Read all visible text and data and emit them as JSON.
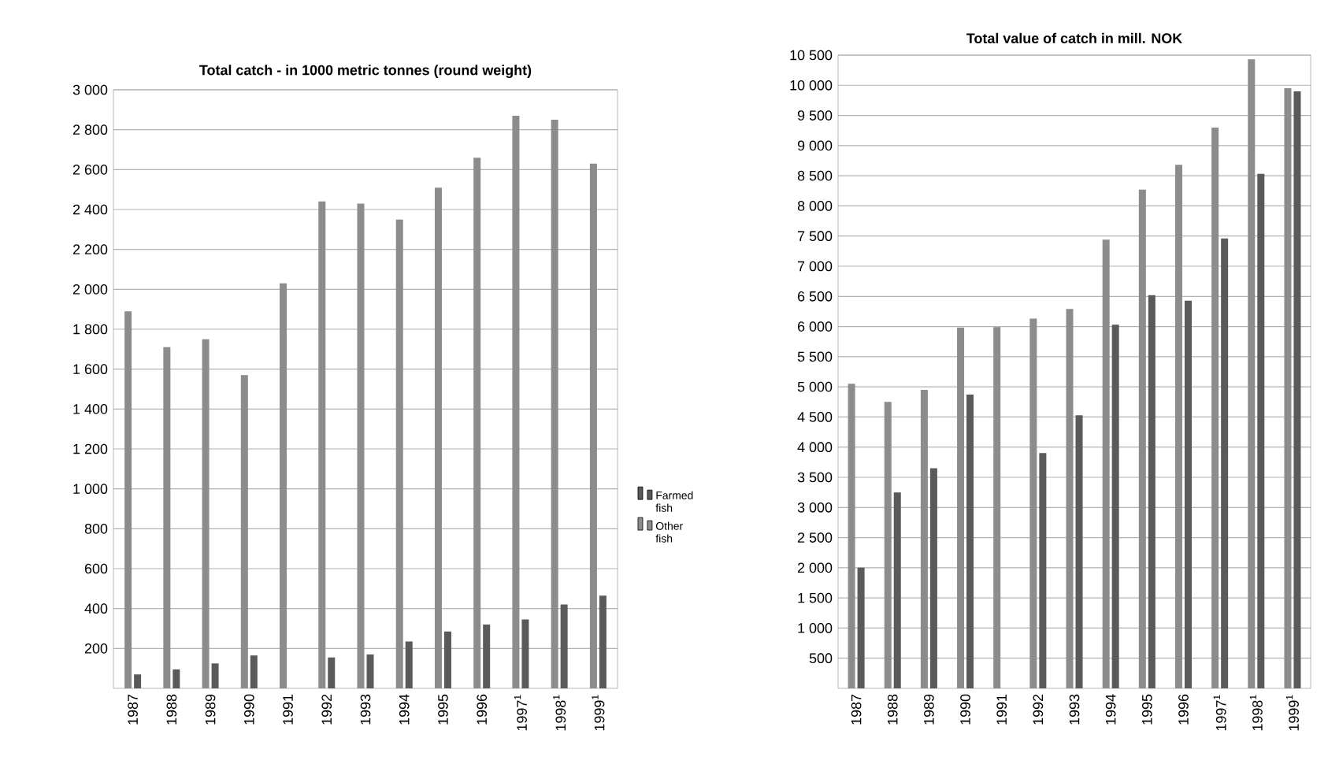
{
  "chart_data": [
    {
      "type": "bar",
      "title": "Total catch - in 1000 metric tonnes (round weight)",
      "categories": [
        "1987",
        "1988",
        "1989",
        "1990",
        "1991",
        "1992",
        "1993",
        "1994",
        "1995",
        "1996",
        "1997$^{1}$",
        "1998$^{1}$",
        "1999$^{1}$"
      ],
      "series": [
        {
          "name": "Other fish",
          "color": "#8c8c8c",
          "values": [
            1890,
            1710,
            1750,
            1570,
            2030,
            2440,
            2430,
            2350,
            2510,
            2660,
            2870,
            2850,
            2630
          ]
        },
        {
          "name": "Farmed fish",
          "color": "#5a5a5a",
          "values": [
            70,
            95,
            125,
            165,
            null,
            155,
            170,
            235,
            285,
            320,
            345,
            420,
            465
          ]
        }
      ],
      "ylim": [
        0,
        3000
      ],
      "yticks": [
        200,
        400,
        600,
        800,
        {
          "value": 1000,
          "label": "1 000"
        },
        {
          "value": 1200,
          "label": "1 200"
        },
        {
          "value": 1400,
          "label": "1 400"
        },
        {
          "value": 1600,
          "label": "1 600"
        },
        {
          "value": 1800,
          "label": "1 800"
        },
        {
          "value": 2000,
          "label": "2 000"
        },
        {
          "value": 2200,
          "label": "2 200"
        },
        {
          "value": 2400,
          "label": "2 400"
        },
        {
          "value": 2600,
          "label": "2 600"
        },
        {
          "value": 2800,
          "label": "2 800"
        },
        {
          "value": 3000,
          "label": "3 000"
        }
      ],
      "grid": "y",
      "legend": "right"
    },
    {
      "type": "bar",
      "title": "Total value of catch in mill. NOK",
      "categories": [
        "1987",
        "1988",
        "1989",
        "1990",
        "1991",
        "1992",
        "1993",
        "1994",
        "1995",
        "1996",
        "1997$^{1}$",
        "1998$^{1}$",
        "1999$^{1}$"
      ],
      "series": [
        {
          "color": "#8c8c8c",
          "values": [
            5050,
            4750,
            4950,
            5980,
            5990,
            6130,
            6290,
            7440,
            8270,
            8680,
            9300,
            10430,
            9950
          ]
        },
        {
          "color": "#5a5a5a",
          "values": [
            2000,
            3250,
            3650,
            4870,
            null,
            3900,
            4530,
            6030,
            6520,
            6430,
            7460,
            8530,
            9900
          ]
        }
      ],
      "ylim": [
        0,
        10500
      ],
      "yticks": [
        500,
        {
          "value": 1000,
          "label": "1 000"
        },
        {
          "value": 1500,
          "label": "1 500"
        },
        {
          "value": 2000,
          "label": "2 000"
        },
        {
          "value": 2500,
          "label": "2 500"
        },
        {
          "value": 3000,
          "label": "3 000"
        },
        {
          "value": 3500,
          "label": "3 500"
        },
        {
          "value": 4000,
          "label": "4 000"
        },
        {
          "value": 4500,
          "label": "4 500"
        },
        {
          "value": 5000,
          "label": "5 000"
        },
        {
          "value": 5500,
          "label": "5 500"
        },
        {
          "value": 6000,
          "label": "6 000"
        },
        {
          "value": 6500,
          "label": "6 500"
        },
        {
          "value": 7000,
          "label": "7 000"
        },
        {
          "value": 7500,
          "label": "7 500"
        },
        {
          "value": 8000,
          "label": "8 000"
        },
        {
          "value": 8500,
          "label": "8 500"
        },
        {
          "value": 9000,
          "label": "9 000"
        },
        {
          "value": 9500,
          "label": "9 500"
        },
        {
          "value": 10000,
          "label": "10 000"
        },
        {
          "value": 10500,
          "label": "10 500"
        }
      ],
      "grid": "y"
    }
  ]
}
